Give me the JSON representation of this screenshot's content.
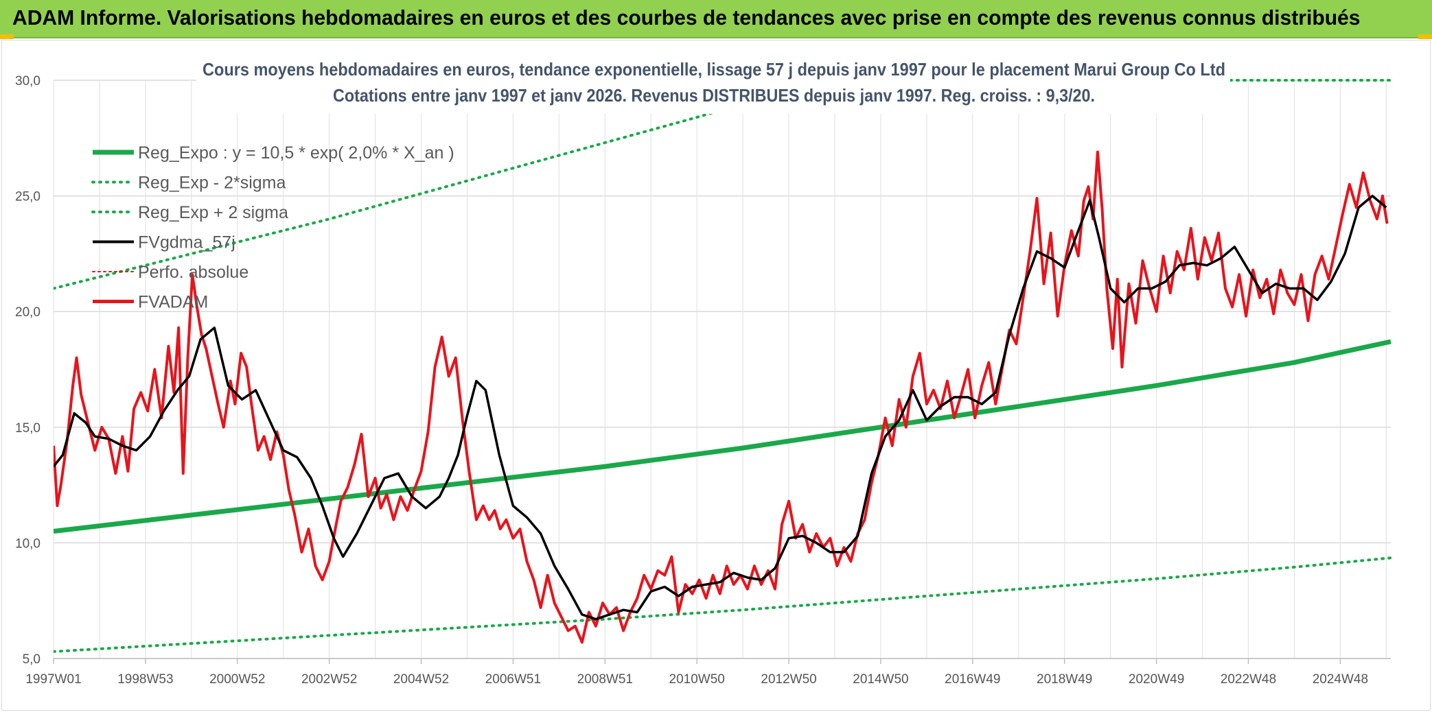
{
  "header": {
    "title": "ADAM Informe. Valorisations hebdomadaires en euros et des courbes de tendances avec prise en compte des revenus connus distribués"
  },
  "colors": {
    "header_bg": "#92d050",
    "regression": "#1aa84a",
    "band": "#1aa84a",
    "smoothed": "#000000",
    "price": "#e8141c",
    "perf": "#e8141c"
  },
  "chart_data": {
    "type": "line",
    "title_line1": "Cours moyens hebdomadaires en euros, tendance exponentielle, lissage 57 j depuis janv 1997 pour le placement Marui Group Co Ltd",
    "title_line2": "Cotations entre janv 1997 et janv 2026. Revenus DISTRIBUES depuis janv 1997. Reg. croiss. : 9,3/20.",
    "ylim": [
      5,
      30
    ],
    "y_ticks": [
      "5,0",
      "10,0",
      "15,0",
      "20,0",
      "25,0",
      "30,0"
    ],
    "y_tick_values": [
      5,
      10,
      15,
      20,
      25,
      30
    ],
    "xlim": [
      1997.0,
      2026.1
    ],
    "x_tick_labels": [
      "1997W01",
      "1998W53",
      "2000W52",
      "2002W52",
      "2004W52",
      "2006W51",
      "2008W51",
      "2010W50",
      "2012W50",
      "2014W50",
      "2016W49",
      "2018W49",
      "2020W49",
      "2022W48",
      "2024W48"
    ],
    "x_tick_positions": [
      1997.0,
      1999.0,
      2001.0,
      2003.0,
      2005.0,
      2007.0,
      2009.0,
      2011.0,
      2013.0,
      2015.0,
      2017.0,
      2019.0,
      2021.0,
      2023.0,
      2025.0
    ],
    "legend": [
      {
        "key": "reg",
        "label": "Reg_Expo : y = 10,5 * exp( 2,0% *  X_an )"
      },
      {
        "key": "lower",
        "label": "Reg_Exp - 2*sigma"
      },
      {
        "key": "upper",
        "label": "Reg_Exp + 2 sigma"
      },
      {
        "key": "smooth",
        "label": "FVgdma_57j"
      },
      {
        "key": "perf",
        "label": "Perfo. absolue"
      },
      {
        "key": "price",
        "label": "FVADAM"
      }
    ],
    "series": [
      {
        "name": "Reg_Expo",
        "x": [
          1997.0,
          2000.0,
          2003.0,
          2006.0,
          2009.0,
          2012.0,
          2015.0,
          2018.0,
          2021.0,
          2024.0,
          2026.1
        ],
        "values": [
          10.5,
          11.2,
          11.9,
          12.6,
          13.3,
          14.1,
          15.0,
          15.9,
          16.8,
          17.8,
          18.7
        ]
      },
      {
        "name": "Reg_Exp - 2*sigma",
        "x": [
          1997.0,
          2000.0,
          2003.0,
          2006.0,
          2009.0,
          2012.0,
          2015.0,
          2018.0,
          2021.0,
          2024.0,
          2026.1
        ],
        "values": [
          5.3,
          5.65,
          6.0,
          6.35,
          6.7,
          7.1,
          7.55,
          8.0,
          8.45,
          8.95,
          9.35
        ]
      },
      {
        "name": "Reg_Exp + 2 sigma",
        "x": [
          1997.0,
          1999.0,
          2001.0,
          2003.0,
          2005.0,
          2007.0,
          2009.0,
          2011.0,
          2012.9
        ],
        "values": [
          21.0,
          22.0,
          23.0,
          24.0,
          25.1,
          26.2,
          27.3,
          28.4,
          29.5
        ]
      },
      {
        "name": "FVgdma_57j",
        "x": [
          1997.0,
          1997.2,
          1997.45,
          1997.7,
          1997.9,
          1998.2,
          1998.5,
          1998.8,
          1999.1,
          1999.4,
          1999.7,
          1999.95,
          2000.2,
          2000.5,
          2000.8,
          2001.1,
          2001.4,
          2001.7,
          2002.0,
          2002.3,
          2002.6,
          2002.85,
          2003.1,
          2003.3,
          2003.6,
          2003.9,
          2004.2,
          2004.5,
          2004.8,
          2005.1,
          2005.4,
          2005.6,
          2005.8,
          2006.0,
          2006.2,
          2006.4,
          2006.7,
          2007.0,
          2007.3,
          2007.6,
          2007.9,
          2008.2,
          2008.5,
          2008.8,
          2009.1,
          2009.4,
          2009.7,
          2010.0,
          2010.3,
          2010.6,
          2010.9,
          2011.2,
          2011.5,
          2011.8,
          2012.1,
          2012.4,
          2012.7,
          2013.0,
          2013.3,
          2013.6,
          2013.9,
          2014.2,
          2014.5,
          2014.8,
          2015.1,
          2015.4,
          2015.7,
          2016.0,
          2016.3,
          2016.6,
          2016.9,
          2017.2,
          2017.5,
          2017.8,
          2018.1,
          2018.4,
          2018.7,
          2019.0,
          2019.3,
          2019.55,
          2019.75,
          2020.0,
          2020.3,
          2020.6,
          2020.9,
          2021.2,
          2021.5,
          2021.8,
          2022.1,
          2022.4,
          2022.7,
          2023.0,
          2023.3,
          2023.6,
          2023.9,
          2024.2,
          2024.5,
          2024.8,
          2025.1,
          2025.4,
          2025.7,
          2026.0
        ],
        "values": [
          13.3,
          13.8,
          15.6,
          15.2,
          14.6,
          14.5,
          14.2,
          14.0,
          14.6,
          15.7,
          16.6,
          17.2,
          18.8,
          19.3,
          16.8,
          16.2,
          16.6,
          15.3,
          14.0,
          13.7,
          12.8,
          11.6,
          10.2,
          9.4,
          10.4,
          11.6,
          12.8,
          13.0,
          12.0,
          11.5,
          12.0,
          12.8,
          13.8,
          15.5,
          17.0,
          16.6,
          13.8,
          11.6,
          11.1,
          10.4,
          9.0,
          8.0,
          6.9,
          6.7,
          6.9,
          7.1,
          7.0,
          7.9,
          8.1,
          7.7,
          8.1,
          8.2,
          8.3,
          8.7,
          8.5,
          8.4,
          8.9,
          10.2,
          10.3,
          10.0,
          9.6,
          9.6,
          10.3,
          13.0,
          14.6,
          15.3,
          16.6,
          15.3,
          15.9,
          16.3,
          16.3,
          16.0,
          16.5,
          19.0,
          21.0,
          22.6,
          22.3,
          21.9,
          23.5,
          24.8,
          23.2,
          21.0,
          20.4,
          21.0,
          21.0,
          21.3,
          22.0,
          22.1,
          22.0,
          22.3,
          22.8,
          21.8,
          20.8,
          21.2,
          21.0,
          21.0,
          20.5,
          21.3,
          22.5,
          24.5,
          25.0,
          24.5
        ]
      },
      {
        "name": "FVADAM",
        "x": [
          1997.0,
          1997.08,
          1997.16,
          1997.3,
          1997.42,
          1997.5,
          1997.6,
          1997.75,
          1997.9,
          1998.05,
          1998.2,
          1998.35,
          1998.5,
          1998.62,
          1998.75,
          1998.9,
          1999.05,
          1999.2,
          1999.35,
          1999.5,
          1999.62,
          1999.72,
          1999.82,
          1999.92,
          2000.02,
          2000.12,
          2000.22,
          2000.32,
          2000.45,
          2000.58,
          2000.7,
          2000.85,
          2000.95,
          2001.08,
          2001.2,
          2001.32,
          2001.45,
          2001.58,
          2001.72,
          2001.86,
          2002.0,
          2002.12,
          2002.25,
          2002.4,
          2002.55,
          2002.7,
          2002.85,
          2003.0,
          2003.15,
          2003.25,
          2003.4,
          2003.55,
          2003.7,
          2003.85,
          2004.0,
          2004.12,
          2004.25,
          2004.4,
          2004.55,
          2004.7,
          2004.85,
          2005.0,
          2005.15,
          2005.3,
          2005.45,
          2005.6,
          2005.75,
          2005.9,
          2006.05,
          2006.2,
          2006.35,
          2006.48,
          2006.6,
          2006.72,
          2006.85,
          2007.0,
          2007.15,
          2007.3,
          2007.45,
          2007.6,
          2007.75,
          2007.9,
          2008.05,
          2008.2,
          2008.35,
          2008.5,
          2008.65,
          2008.8,
          2008.95,
          2009.1,
          2009.25,
          2009.4,
          2009.55,
          2009.7,
          2009.85,
          2010.0,
          2010.15,
          2010.3,
          2010.45,
          2010.6,
          2010.75,
          2010.9,
          2011.05,
          2011.2,
          2011.35,
          2011.5,
          2011.65,
          2011.8,
          2011.95,
          2012.1,
          2012.25,
          2012.4,
          2012.55,
          2012.7,
          2012.85,
          2013.0,
          2013.15,
          2013.3,
          2013.45,
          2013.6,
          2013.75,
          2013.9,
          2014.05,
          2014.2,
          2014.35,
          2014.5,
          2014.65,
          2014.8,
          2014.95,
          2015.1,
          2015.25,
          2015.4,
          2015.55,
          2015.7,
          2015.85,
          2016.0,
          2016.15,
          2016.3,
          2016.45,
          2016.6,
          2016.75,
          2016.9,
          2017.05,
          2017.2,
          2017.35,
          2017.5,
          2017.65,
          2017.8,
          2017.95,
          2018.1,
          2018.25,
          2018.4,
          2018.55,
          2018.7,
          2018.85,
          2019.0,
          2019.15,
          2019.3,
          2019.42,
          2019.52,
          2019.62,
          2019.72,
          2019.82,
          2019.92,
          2020.05,
          2020.15,
          2020.25,
          2020.4,
          2020.55,
          2020.7,
          2020.85,
          2021.0,
          2021.15,
          2021.3,
          2021.45,
          2021.6,
          2021.75,
          2021.9,
          2022.05,
          2022.2,
          2022.35,
          2022.5,
          2022.65,
          2022.8,
          2022.95,
          2023.1,
          2023.25,
          2023.4,
          2023.55,
          2023.7,
          2023.85,
          2024.0,
          2024.15,
          2024.3,
          2024.45,
          2024.6,
          2024.75,
          2024.9,
          2025.05,
          2025.2,
          2025.35,
          2025.5,
          2025.65,
          2025.8,
          2025.92,
          2026.02
        ],
        "values": [
          14.2,
          11.6,
          12.5,
          14.5,
          16.8,
          18.0,
          16.4,
          15.2,
          14.0,
          15.0,
          14.5,
          13.0,
          14.6,
          13.1,
          15.8,
          16.5,
          15.7,
          17.5,
          15.4,
          18.5,
          16.5,
          19.3,
          13.0,
          18.0,
          21.6,
          20.2,
          19.0,
          18.4,
          17.2,
          16.0,
          15.0,
          17.0,
          16.0,
          18.2,
          17.6,
          15.8,
          14.0,
          14.6,
          13.6,
          14.8,
          13.8,
          12.3,
          11.2,
          9.6,
          10.6,
          9.0,
          8.4,
          9.2,
          10.8,
          11.8,
          12.4,
          13.4,
          14.7,
          12.0,
          12.8,
          11.5,
          12.1,
          11.0,
          12.0,
          11.4,
          12.3,
          13.1,
          14.8,
          17.6,
          18.9,
          17.2,
          18.0,
          15.3,
          13.0,
          11.0,
          11.6,
          11.0,
          11.4,
          10.6,
          11.0,
          10.2,
          10.6,
          9.2,
          8.4,
          7.2,
          8.6,
          7.4,
          6.8,
          6.2,
          6.4,
          5.7,
          7.0,
          6.4,
          7.4,
          6.9,
          7.2,
          6.2,
          7.0,
          7.6,
          8.6,
          8.0,
          8.8,
          8.6,
          9.4,
          7.0,
          8.2,
          7.8,
          8.4,
          7.6,
          8.6,
          7.8,
          9.0,
          8.2,
          8.6,
          8.0,
          9.0,
          8.2,
          8.8,
          8.0,
          10.8,
          11.8,
          10.2,
          10.8,
          9.6,
          10.4,
          9.8,
          10.2,
          9.0,
          9.8,
          9.2,
          10.4,
          11.0,
          12.6,
          13.8,
          15.4,
          14.2,
          16.2,
          15.0,
          17.2,
          18.2,
          16.0,
          16.6,
          15.8,
          17.0,
          15.4,
          16.4,
          17.5,
          15.4,
          16.8,
          17.8,
          16.0,
          17.6,
          19.2,
          18.6,
          20.6,
          22.6,
          24.9,
          21.2,
          23.4,
          19.8,
          22.0,
          23.5,
          22.4,
          24.8,
          25.4,
          24.0,
          26.9,
          24.4,
          21.0,
          18.4,
          21.4,
          17.6,
          21.2,
          19.5,
          22.2,
          21.0,
          20.0,
          22.4,
          20.8,
          22.6,
          21.8,
          23.6,
          21.4,
          23.2,
          22.2,
          23.4,
          21.0,
          20.2,
          21.6,
          19.8,
          21.8,
          20.6,
          21.4,
          19.9,
          21.8,
          20.8,
          20.3,
          21.6,
          19.6,
          21.6,
          22.4,
          21.4,
          22.8,
          24.2,
          25.5,
          24.5,
          26.0,
          24.8,
          24.0,
          25.0,
          23.8
        ]
      }
    ]
  }
}
